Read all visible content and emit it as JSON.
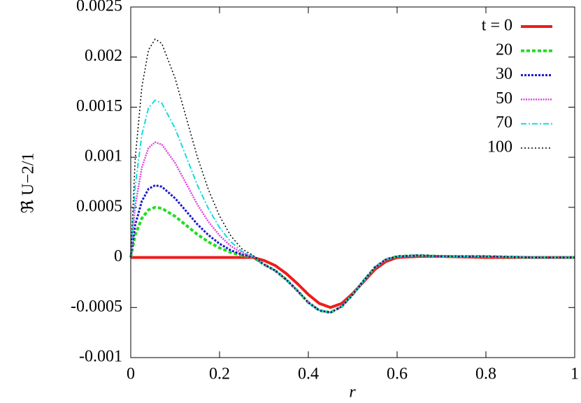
{
  "chart_data": {
    "type": "line",
    "xlabel": "r",
    "ylabel": "ℜ U−2/1",
    "x": [
      0,
      0.01,
      0.025,
      0.04,
      0.055,
      0.07,
      0.1,
      0.125,
      0.15,
      0.175,
      0.2,
      0.225,
      0.25,
      0.275,
      0.3,
      0.325,
      0.35,
      0.375,
      0.4,
      0.425,
      0.45,
      0.475,
      0.5,
      0.525,
      0.55,
      0.575,
      0.6,
      0.65,
      0.7,
      0.8,
      0.9,
      1
    ],
    "series": [
      {
        "name": "t = 0",
        "color": "#ee1c1c",
        "width": 4,
        "dash": "none",
        "values": [
          0,
          0,
          0,
          0,
          0,
          0,
          0,
          0,
          0,
          0,
          0,
          0,
          0,
          0,
          -3e-05,
          -8e-05,
          -0.00016,
          -0.00026,
          -0.00037,
          -0.00046,
          -0.0005,
          -0.00046,
          -0.00036,
          -0.00024,
          -0.00012,
          -4e-05,
          0,
          1e-05,
          1e-05,
          0,
          0,
          0
        ]
      },
      {
        "name": "20",
        "color": "#22dd22",
        "width": 4,
        "dash": "5,3",
        "values": [
          0,
          0.000225,
          0.00039,
          0.000475,
          0.0005,
          0.00049,
          0.00041,
          0.00032,
          0.00023,
          0.000155,
          9.5e-05,
          5e-05,
          2e-05,
          5e-06,
          -7e-05,
          -0.00013,
          -0.00022,
          -0.00033,
          -0.00045,
          -0.00053,
          -0.00055,
          -0.00049,
          -0.00037,
          -0.00023,
          -0.0001,
          -2e-05,
          1e-05,
          2e-05,
          1e-05,
          1e-05,
          0,
          0
        ]
      },
      {
        "name": "30",
        "color": "#1a1acc",
        "width": 3,
        "dash": "3,2",
        "values": [
          0,
          0.000324,
          0.000562,
          0.000684,
          0.00072,
          0.000706,
          0.00059,
          0.000461,
          0.000331,
          0.000223,
          0.000137,
          7.2e-05,
          2.9e-05,
          7e-06,
          -7e-05,
          -0.00013,
          -0.00022,
          -0.00033,
          -0.00045,
          -0.00053,
          -0.00055,
          -0.00049,
          -0.00037,
          -0.00023,
          -0.0001,
          -2e-05,
          1e-05,
          2e-05,
          1e-05,
          1e-05,
          0,
          0
        ]
      },
      {
        "name": "50",
        "color": "#dd44dd",
        "width": 2.5,
        "dash": "2,1.5",
        "values": [
          0,
          0.000518,
          0.000897,
          0.001093,
          0.00115,
          0.001127,
          0.000943,
          0.000736,
          0.000529,
          0.000357,
          0.000219,
          0.000115,
          4.6e-05,
          1.2e-05,
          -7e-05,
          -0.00013,
          -0.00022,
          -0.00033,
          -0.00045,
          -0.00053,
          -0.00055,
          -0.00049,
          -0.00037,
          -0.00023,
          -0.0001,
          -2e-05,
          1e-05,
          2e-05,
          1e-05,
          1e-05,
          0,
          0
        ]
      },
      {
        "name": "70",
        "color": "#11dddd",
        "width": 2,
        "dash": "8,3,2,3",
        "values": [
          0,
          0.000707,
          0.001225,
          0.001492,
          0.00157,
          0.001539,
          0.001287,
          0.001005,
          0.000722,
          0.000487,
          0.000298,
          0.000157,
          6.3e-05,
          1.6e-05,
          -7e-05,
          -0.00013,
          -0.00022,
          -0.00033,
          -0.00045,
          -0.00053,
          -0.00055,
          -0.00049,
          -0.00037,
          -0.00023,
          -0.0001,
          -2e-05,
          1e-05,
          2e-05,
          1e-05,
          1e-05,
          0,
          0
        ]
      },
      {
        "name": "100",
        "color": "#000000",
        "width": 1.5,
        "dash": "2,3",
        "values": [
          0,
          0.000981,
          0.0017,
          0.002071,
          0.00218,
          0.002136,
          0.001788,
          0.001395,
          0.001003,
          0.000676,
          0.000414,
          0.000218,
          8.7e-05,
          2.2e-05,
          -7e-05,
          -0.00013,
          -0.00022,
          -0.00033,
          -0.00045,
          -0.00053,
          -0.00055,
          -0.00049,
          -0.00037,
          -0.00023,
          -0.0001,
          -2e-05,
          1e-05,
          2e-05,
          1e-05,
          1e-05,
          0,
          0
        ]
      }
    ],
    "xlim": [
      0,
      1
    ],
    "xticks": [
      0,
      0.2,
      0.4,
      0.6,
      0.8,
      1
    ],
    "ylim": [
      -0.001,
      0.0025
    ],
    "yticks": [
      -0.001,
      -0.0005,
      0,
      0.0005,
      0.001,
      0.0015,
      0.002,
      0.0025
    ],
    "grid": false,
    "legend": "top-right"
  }
}
